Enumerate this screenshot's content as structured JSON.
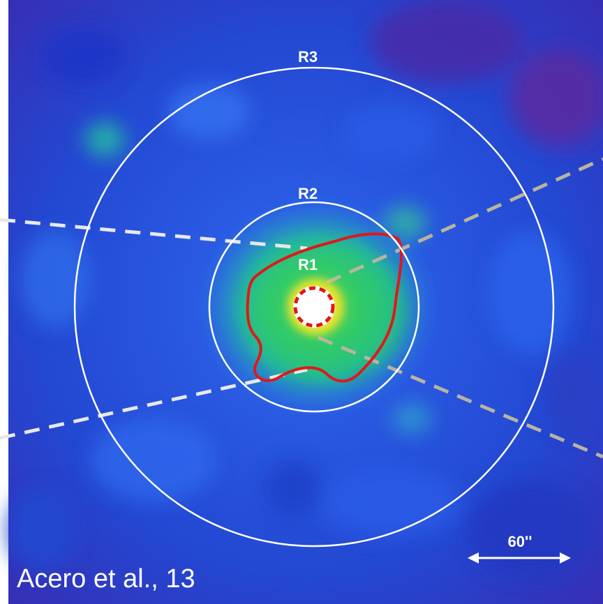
{
  "figure": {
    "regions": [
      {
        "id": "R1",
        "label": "R1"
      },
      {
        "id": "R2",
        "label": "R2"
      },
      {
        "id": "R3",
        "label": "R3"
      }
    ],
    "scale_bar": {
      "label": "60''"
    },
    "credit": "Acero et al., 13"
  },
  "colors": {
    "background_deep": "#1a2fb8",
    "background_mid": "#2a58e0",
    "emission_green": "#22c85a",
    "emission_yellow": "#e8e030",
    "contour_red": "#e01818",
    "circle_white": "#ffffff",
    "dashed_line_white": "#e8e8e8",
    "dashed_line_grey": "#b8b4a0"
  }
}
